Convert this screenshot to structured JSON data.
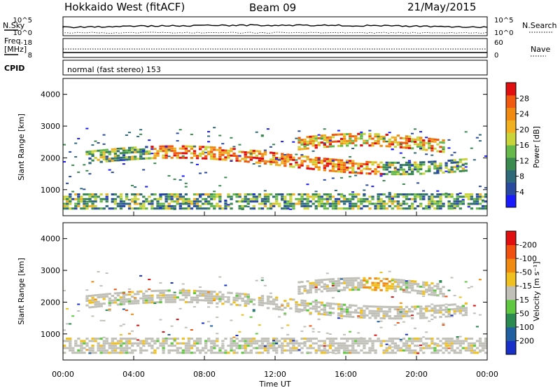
{
  "header": {
    "title": "Hokkaido West (fitACF)",
    "beam": "Beam 09",
    "date": "21/May/2015"
  },
  "top_panels": {
    "nsky_label": "N.Sky",
    "nsky_ticks": [
      "10^5",
      "10^0"
    ],
    "nsearch_label": "N.Search",
    "freq_label_1": "Freq.",
    "freq_label_2": "[MHz]",
    "freq_ticks": [
      "18",
      "8"
    ],
    "nave_label": "Nave",
    "nave_ticks": [
      "60",
      "0"
    ],
    "cpid_label": "CPID",
    "cpid_value": "normal (fast stereo) 153"
  },
  "chart_data": [
    {
      "type": "heatmap",
      "name": "power-panel",
      "xlabel": "",
      "ylabel": "Slant Range [km]",
      "x_range": [
        "00:00",
        "00:00"
      ],
      "ylim": [
        180,
        4500
      ],
      "y_ticks": [
        1000,
        2000,
        3000,
        4000
      ],
      "colorbar": {
        "label": "Power [dB]",
        "ticks": [
          4,
          8,
          12,
          16,
          20,
          24,
          28
        ],
        "colors": [
          "#1a1aff",
          "#2a4aa0",
          "#2f6a7a",
          "#3a8a50",
          "#66b84a",
          "#c8d43a",
          "#f0b020",
          "#f08a10",
          "#f05a10",
          "#e01010"
        ]
      }
    },
    {
      "type": "heatmap",
      "name": "velocity-panel",
      "xlabel": "Time UT",
      "ylabel": "Slant Range [km]",
      "x_ticks": [
        "00:00",
        "04:00",
        "08:00",
        "12:00",
        "16:00",
        "20:00",
        "00:00"
      ],
      "ylim": [
        180,
        4500
      ],
      "y_ticks": [
        1000,
        2000,
        3000,
        4000
      ],
      "colorbar": {
        "label": "Velocity [m s⁻¹]",
        "ticks": [
          "200",
          "100",
          "50",
          "15",
          "-15",
          "-50",
          "-100",
          "-200"
        ],
        "colors": [
          "#1830c8",
          "#2060a0",
          "#2a8a50",
          "#60c840",
          "#c0c0b8",
          "#f0c020",
          "#f08a10",
          "#f05010",
          "#e01010"
        ]
      }
    }
  ]
}
